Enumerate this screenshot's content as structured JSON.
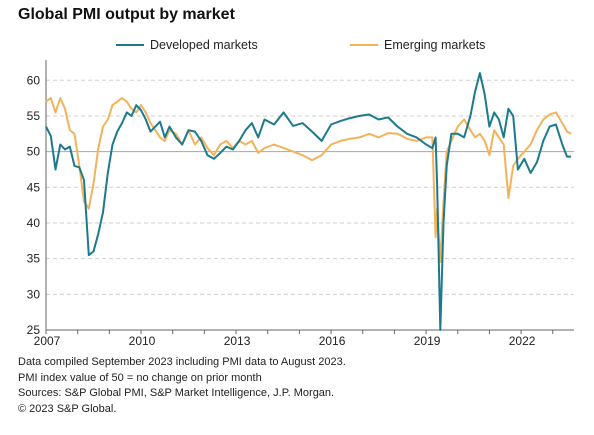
{
  "title": "Global PMI output by market",
  "notes": [
    "Data compiled September 2023 including PMI data to August 2023.",
    "PMI index value of 50 = no change on prior month",
    "Sources: S&P Global PMI, S&P Market Intelligence, J.P. Morgan.",
    "© 2023 S&P Global."
  ],
  "chart_data": {
    "type": "line",
    "title": "Global PMI output by market",
    "xlabel": "",
    "ylabel": "",
    "xlim": [
      2007.0,
      2023.67
    ],
    "ylim": [
      25,
      62
    ],
    "yticks": [
      25,
      30,
      35,
      40,
      45,
      50,
      55,
      60
    ],
    "xticks": [
      2007,
      2010,
      2013,
      2016,
      2019,
      2022
    ],
    "grid": "horizontal-dashed",
    "reference_line": 50,
    "legend_position": "top",
    "colors": {
      "Developed markets": "#1b7a8c",
      "Emerging markets": "#f2b35c",
      "reference": "#a6a6a6"
    },
    "series": [
      {
        "name": "Developed markets",
        "color": "#1b7a8c",
        "x": [
          2007.0,
          2007.15,
          2007.3,
          2007.45,
          2007.6,
          2007.75,
          2007.9,
          2008.05,
          2008.2,
          2008.35,
          2008.5,
          2008.65,
          2008.8,
          2008.95,
          2009.1,
          2009.25,
          2009.4,
          2009.55,
          2009.7,
          2009.85,
          2010.0,
          2010.15,
          2010.3,
          2010.45,
          2010.6,
          2010.75,
          2010.9,
          2011.1,
          2011.3,
          2011.5,
          2011.7,
          2011.9,
          2012.1,
          2012.3,
          2012.5,
          2012.7,
          2012.9,
          2013.1,
          2013.3,
          2013.5,
          2013.7,
          2013.9,
          2014.2,
          2014.5,
          2014.8,
          2015.1,
          2015.4,
          2015.7,
          2016.0,
          2016.3,
          2016.6,
          2016.9,
          2017.2,
          2017.5,
          2017.8,
          2018.1,
          2018.4,
          2018.7,
          2019.0,
          2019.2,
          2019.3,
          2019.35,
          2019.45,
          2019.55,
          2019.65,
          2019.8,
          2020.0,
          2020.2,
          2020.4,
          2020.55,
          2020.7,
          2020.85,
          2021.0,
          2021.15,
          2021.3,
          2021.45,
          2021.6,
          2021.75,
          2021.9,
          2022.1,
          2022.3,
          2022.5,
          2022.7,
          2022.9,
          2023.1,
          2023.3,
          2023.45,
          2023.58
        ],
        "values": [
          53.5,
          52.2,
          47.5,
          51.0,
          50.3,
          50.7,
          48.0,
          47.8,
          46.0,
          35.5,
          36.0,
          38.5,
          41.5,
          47.0,
          51.0,
          52.8,
          54.0,
          55.5,
          55.0,
          56.5,
          55.8,
          54.5,
          52.8,
          53.5,
          54.2,
          52.0,
          53.5,
          52.0,
          51.0,
          53.0,
          52.8,
          51.5,
          49.5,
          49.0,
          49.8,
          50.7,
          50.3,
          51.5,
          53.0,
          54.0,
          52.0,
          54.5,
          53.8,
          55.5,
          53.6,
          54.0,
          52.8,
          51.5,
          53.8,
          54.3,
          54.7,
          55.0,
          55.2,
          54.5,
          54.8,
          53.5,
          52.5,
          52.0,
          51.0,
          50.5,
          52.0,
          45.0,
          25.0,
          40.0,
          48.0,
          52.5,
          52.5,
          52.0,
          55.0,
          58.5,
          61.0,
          58.0,
          53.5,
          55.5,
          54.5,
          52.0,
          56.0,
          55.0,
          47.5,
          49.0,
          47.0,
          48.5,
          51.5,
          53.5,
          53.8,
          51.0,
          49.3,
          49.3
        ]
      },
      {
        "name": "Emerging markets",
        "color": "#f2b35c",
        "x": [
          2007.0,
          2007.15,
          2007.3,
          2007.45,
          2007.6,
          2007.75,
          2007.9,
          2008.05,
          2008.2,
          2008.35,
          2008.5,
          2008.65,
          2008.8,
          2008.95,
          2009.1,
          2009.25,
          2009.4,
          2009.55,
          2009.7,
          2009.85,
          2010.0,
          2010.15,
          2010.3,
          2010.45,
          2010.6,
          2010.75,
          2010.9,
          2011.1,
          2011.3,
          2011.5,
          2011.7,
          2011.9,
          2012.1,
          2012.3,
          2012.5,
          2012.7,
          2012.9,
          2013.1,
          2013.3,
          2013.5,
          2013.7,
          2013.9,
          2014.2,
          2014.5,
          2014.8,
          2015.1,
          2015.4,
          2015.7,
          2016.0,
          2016.3,
          2016.6,
          2016.9,
          2017.2,
          2017.5,
          2017.8,
          2018.1,
          2018.4,
          2018.7,
          2019.0,
          2019.2,
          2019.3,
          2019.35,
          2019.45,
          2019.55,
          2019.65,
          2019.8,
          2020.0,
          2020.2,
          2020.4,
          2020.55,
          2020.7,
          2020.85,
          2021.0,
          2021.15,
          2021.3,
          2021.45,
          2021.6,
          2021.75,
          2021.9,
          2022.1,
          2022.3,
          2022.5,
          2022.7,
          2022.9,
          2023.1,
          2023.3,
          2023.45,
          2023.58
        ],
        "values": [
          57.0,
          57.5,
          55.5,
          57.5,
          56.0,
          53.0,
          52.5,
          48.0,
          43.0,
          42.0,
          45.5,
          50.5,
          53.5,
          54.5,
          56.5,
          57.0,
          57.5,
          57.0,
          56.0,
          55.5,
          56.5,
          55.5,
          54.0,
          53.0,
          52.0,
          51.5,
          53.0,
          52.5,
          51.0,
          53.0,
          51.0,
          52.0,
          50.5,
          49.5,
          51.0,
          51.5,
          50.5,
          51.5,
          51.0,
          51.5,
          49.8,
          50.5,
          51.0,
          50.5,
          50.0,
          49.5,
          48.8,
          49.5,
          51.0,
          51.5,
          51.8,
          52.0,
          52.5,
          52.0,
          52.6,
          52.5,
          51.8,
          51.5,
          52.0,
          52.0,
          38.0,
          42.0,
          34.5,
          43.0,
          50.0,
          51.5,
          53.5,
          54.5,
          53.0,
          52.0,
          52.5,
          51.5,
          49.5,
          53.0,
          52.0,
          51.0,
          43.5,
          48.0,
          49.0,
          50.0,
          51.0,
          53.0,
          54.5,
          55.2,
          55.5,
          54.0,
          52.8,
          52.5
        ]
      }
    ]
  }
}
